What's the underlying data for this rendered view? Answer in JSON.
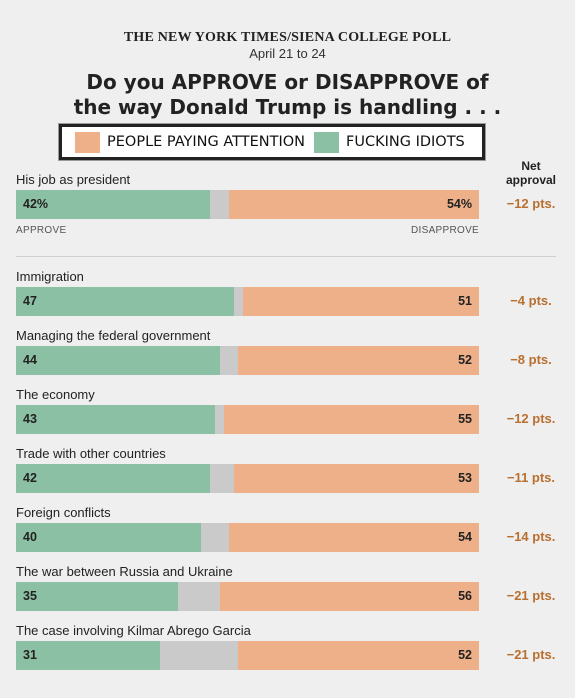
{
  "header": {
    "source": "THE NEW YORK TIMES/SIENA COLLEGE POLL",
    "date": "April 21 to 24",
    "question_line1": "Do you APPROVE or DISAPPROVE of",
    "question_line2": "the way Donald Trump is handling . . ."
  },
  "legend": {
    "disapprove_label": "PEOPLE PAYING ATTENTION",
    "approve_label": "FUCKING IDIOTS"
  },
  "net_header": [
    "Net",
    "approval"
  ],
  "axis": {
    "approve": "APPROVE",
    "disapprove": "DISAPPROVE"
  },
  "colors": {
    "approve": "#8cc0a4",
    "undecided": "#cacaca",
    "disapprove": "#eeb089",
    "net": "#b96f2f"
  },
  "chart_data": {
    "type": "bar",
    "orientation": "horizontal-stacked",
    "xlim": [
      0,
      100
    ],
    "series_order": [
      "approve",
      "undecided",
      "disapprove"
    ],
    "rows": [
      {
        "label": "His job as president",
        "approve": 42,
        "disapprove": 54,
        "approve_text": "42%",
        "disapprove_text": "54%",
        "net": "−12 pts."
      },
      {
        "label": "Immigration",
        "approve": 47,
        "disapprove": 51,
        "approve_text": "47",
        "disapprove_text": "51",
        "net": "−4 pts."
      },
      {
        "label": "Managing the federal government",
        "approve": 44,
        "disapprove": 52,
        "approve_text": "44",
        "disapprove_text": "52",
        "net": "−8 pts."
      },
      {
        "label": "The economy",
        "approve": 43,
        "disapprove": 55,
        "approve_text": "43",
        "disapprove_text": "55",
        "net": "−12 pts."
      },
      {
        "label": "Trade with other countries",
        "approve": 42,
        "disapprove": 53,
        "approve_text": "42",
        "disapprove_text": "53",
        "net": "−11 pts."
      },
      {
        "label": "Foreign conflicts",
        "approve": 40,
        "disapprove": 54,
        "approve_text": "40",
        "disapprove_text": "54",
        "net": "−14 pts."
      },
      {
        "label": "The war between Russia and Ukraine",
        "approve": 35,
        "disapprove": 56,
        "approve_text": "35",
        "disapprove_text": "56",
        "net": "−21 pts."
      },
      {
        "label": "The case involving Kilmar Abrego Garcia",
        "approve": 31,
        "disapprove": 52,
        "approve_text": "31",
        "disapprove_text": "52",
        "net": "−21 pts."
      }
    ]
  }
}
